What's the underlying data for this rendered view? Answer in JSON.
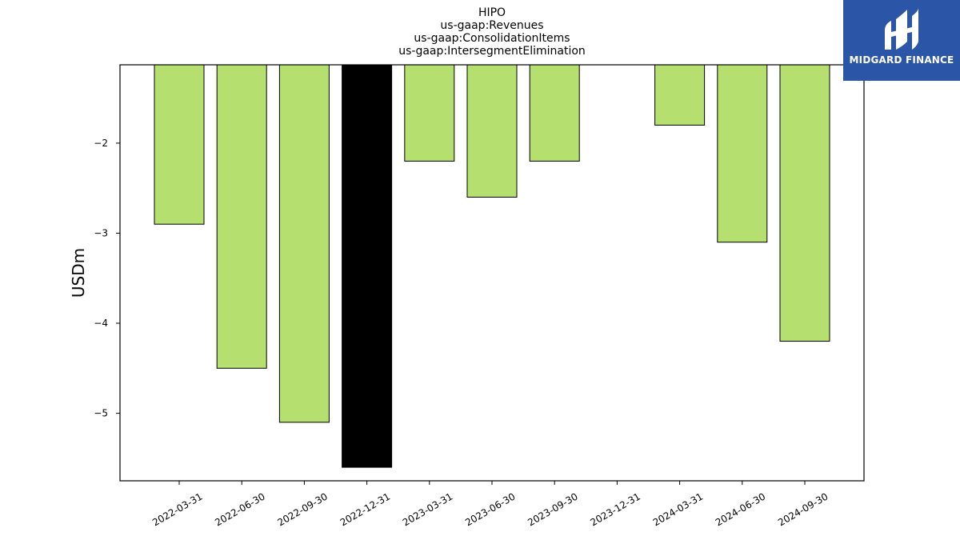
{
  "colors": {
    "bar": "#b5df6e",
    "highlight": "#000000",
    "logo_bg": "#2b56a8"
  },
  "logo": {
    "text": "MIDGARD FINANCE",
    "icon": "midgard-logo-icon"
  },
  "chart_data": {
    "type": "bar",
    "title": [
      "HIPO",
      "us-gaap:Revenues",
      "us-gaap:ConsolidationItems",
      "us-gaap:IntersegmentElimination"
    ],
    "xlabel": "",
    "ylabel": "USDm",
    "categories": [
      "2022-03-31",
      "2022-06-30",
      "2022-09-30",
      "2022-12-31",
      "2023-03-31",
      "2023-06-30",
      "2023-09-30",
      "2023-12-31",
      "2024-03-31",
      "2024-06-30",
      "2024-09-30"
    ],
    "values": [
      -2.9,
      -4.5,
      -5.1,
      -5.6,
      -2.2,
      -2.6,
      -2.2,
      null,
      -1.8,
      -3.1,
      -4.2
    ],
    "highlight": [
      "2022-12-31"
    ],
    "ylim": [
      -5.75,
      -1.13
    ],
    "yticks": [
      -2,
      -3,
      -4,
      -5
    ],
    "grid": false,
    "legend": "none"
  }
}
